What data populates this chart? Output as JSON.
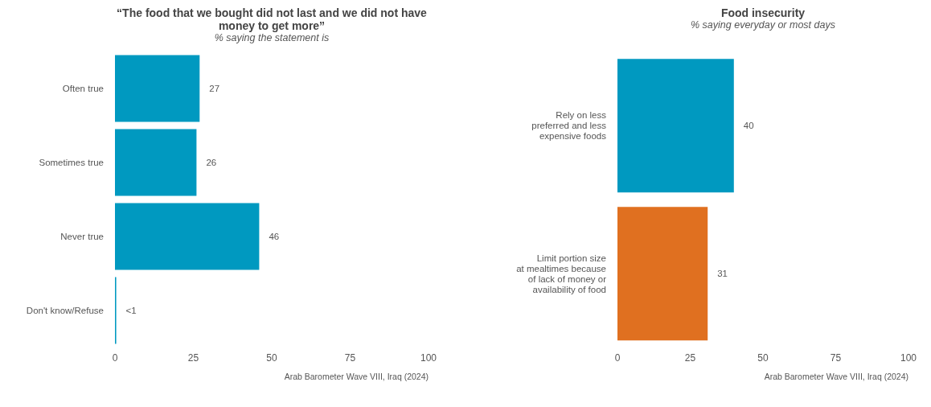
{
  "chart_data": [
    {
      "type": "bar",
      "orientation": "horizontal",
      "title": "“The food that we bought did not last and we did not have money to get more”",
      "subtitle": "% saying the statement is",
      "categories": [
        "Often true",
        "Sometimes true",
        "Never true",
        "Don't know/Refuse"
      ],
      "values": [
        27,
        26,
        46,
        0.4
      ],
      "value_labels": [
        "27",
        "26",
        "46",
        "<1"
      ],
      "color": "#0099c0",
      "xlim": [
        0,
        100
      ],
      "xticks": [
        0,
        25,
        50,
        75,
        100
      ],
      "grid": false,
      "annotations": [
        "Arab Barometer Wave VIII, Iraq (2024)"
      ]
    },
    {
      "type": "bar",
      "orientation": "horizontal",
      "title": "Food insecurity",
      "subtitle": "% saying everyday or most days",
      "categories": [
        "Rely on less preferred and less expensive foods",
        "Limit portion size at mealtimes because of lack of money or availability of food"
      ],
      "values": [
        40,
        31
      ],
      "colors": [
        "#0099c0",
        "#e07020"
      ],
      "data_labels": true,
      "xlim": [
        0,
        100
      ],
      "xticks": [
        0,
        25,
        50,
        75,
        100
      ],
      "grid": false,
      "annotations": [
        "Arab Barometer Wave VIII, Iraq (2024)"
      ]
    }
  ]
}
